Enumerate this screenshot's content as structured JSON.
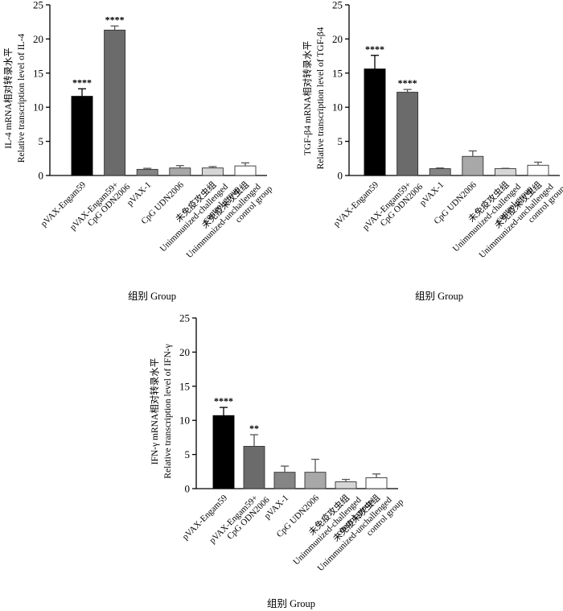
{
  "chart_data": [
    {
      "type": "bar",
      "panel": "IL-4",
      "ylabel_cn": "IL-4 mRNA相对转录水平",
      "ylabel_en": "Relative transcription level of IL-4",
      "xlabel": "组别 Group",
      "ylim": [
        0,
        25
      ],
      "yticks": [
        0,
        5,
        10,
        15,
        20,
        25
      ],
      "categories": [
        [
          "pVAX-Engam59"
        ],
        [
          "pVAX-Engam59+",
          "CpG ODN2006"
        ],
        [
          "pVAX-1"
        ],
        [
          "CpG UDN2006"
        ],
        [
          "未免疫攻虫组",
          "Unimmunized-challenged",
          "control group"
        ],
        [
          "未免疫未攻虫组",
          "Unimmunized-unchallenged",
          "control group"
        ]
      ],
      "values": [
        11.6,
        21.3,
        0.9,
        1.1,
        1.1,
        1.4
      ],
      "errors": [
        1.1,
        0.6,
        0.15,
        0.35,
        0.2,
        0.45
      ],
      "significance": [
        "****",
        "****",
        "",
        "",
        "",
        ""
      ],
      "colors": [
        "#000000",
        "#6b6b6b",
        "#858585",
        "#a8a8a8",
        "#d6d6d6",
        "#ffffff"
      ]
    },
    {
      "type": "bar",
      "panel": "TGF-β4",
      "ylabel_cn": "TGF-β4 mRNA相对转录水平",
      "ylabel_en": "Relative transcription level of TGF-β4",
      "xlabel": "组别 Group",
      "ylim": [
        0,
        25
      ],
      "yticks": [
        0,
        5,
        10,
        15,
        20,
        25
      ],
      "categories": [
        [
          "pVAX-Engam59"
        ],
        [
          "pVAX-Engam59+",
          "CpG ODN2006"
        ],
        [
          "pVAX-1"
        ],
        [
          "CpG UDN2006"
        ],
        [
          "未免疫攻虫组",
          "Unimmunized-challenged",
          "control group"
        ],
        [
          "未免疫未攻虫组",
          "Unimmunized-unchallenged",
          "control group"
        ]
      ],
      "values": [
        15.6,
        12.2,
        1.0,
        2.8,
        1.0,
        1.5
      ],
      "errors": [
        2.0,
        0.4,
        0.1,
        0.8,
        0.05,
        0.45
      ],
      "significance": [
        "****",
        "****",
        "",
        "",
        "",
        ""
      ],
      "colors": [
        "#000000",
        "#6b6b6b",
        "#858585",
        "#a8a8a8",
        "#d6d6d6",
        "#ffffff"
      ]
    },
    {
      "type": "bar",
      "panel": "IFN-γ",
      "ylabel_cn": "IFN-γ mRNA相对转录水平",
      "ylabel_en": "Relative transcription level of IFN-γ",
      "xlabel": "组别 Group",
      "ylim": [
        0,
        25
      ],
      "yticks": [
        0,
        5,
        10,
        15,
        20,
        25
      ],
      "categories": [
        [
          "pVAX-Engam59"
        ],
        [
          "pVAX-Engam59+",
          "CpG ODN2006"
        ],
        [
          "pVAX-1"
        ],
        [
          "CpG UDN2006"
        ],
        [
          "未免疫攻虫组",
          "Unimmunized-challenged",
          "control group"
        ],
        [
          "未免疫未攻虫组",
          "Unimmunized-unchallenged",
          "control group"
        ]
      ],
      "values": [
        10.7,
        6.2,
        2.4,
        2.4,
        1.0,
        1.6
      ],
      "errors": [
        1.2,
        1.7,
        0.9,
        1.9,
        0.35,
        0.55
      ],
      "significance": [
        "****",
        "**",
        "",
        "",
        "",
        ""
      ],
      "colors": [
        "#000000",
        "#6b6b6b",
        "#858585",
        "#a8a8a8",
        "#d6d6d6",
        "#ffffff"
      ]
    }
  ]
}
